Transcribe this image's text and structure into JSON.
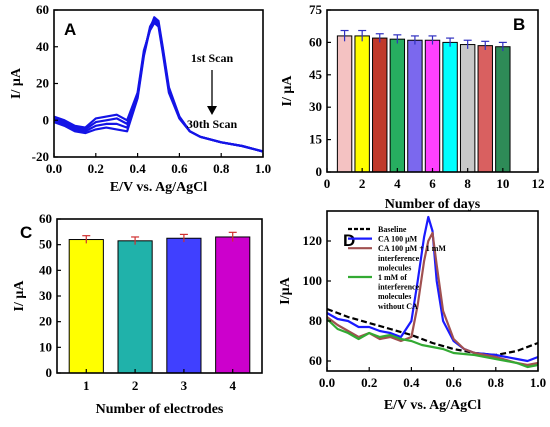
{
  "chart_data": [
    {
      "id": "A",
      "type": "line",
      "panel_label": "A",
      "xlabel": "E/V vs. Ag/AgCl",
      "ylabel": "I/ μA",
      "xlim": [
        0.0,
        1.0
      ],
      "ylim": [
        -20,
        60
      ],
      "xticks": [
        0.0,
        0.2,
        0.4,
        0.6,
        0.8,
        1.0
      ],
      "xtick_labels": [
        "0.0",
        "0.2",
        "0.4",
        "0.6",
        "0.8",
        "1.0"
      ],
      "yticks": [
        -20,
        0,
        20,
        40,
        60
      ],
      "ytick_labels": [
        "-20",
        "0",
        "20",
        "40",
        "60"
      ],
      "color": "#1414e6",
      "annotations": {
        "first_scan": "1st Scan",
        "last_scan": "30th Scan"
      },
      "series": [
        {
          "x": [
            0.0,
            0.05,
            0.1,
            0.15,
            0.2,
            0.25,
            0.3,
            0.35,
            0.4,
            0.43,
            0.46,
            0.48,
            0.5,
            0.52,
            0.55,
            0.6,
            0.65,
            0.7,
            0.8,
            0.9,
            1.0
          ],
          "y": [
            -1,
            -3,
            -6,
            -7,
            -5,
            -4,
            -5,
            -6,
            12,
            35,
            50,
            56,
            54,
            40,
            18,
            2,
            -6,
            -9,
            -12,
            -14,
            -17
          ]
        },
        {
          "x": [
            0.0,
            0.05,
            0.1,
            0.15,
            0.2,
            0.25,
            0.3,
            0.35,
            0.4,
            0.43,
            0.46,
            0.48,
            0.5,
            0.52,
            0.55,
            0.6,
            0.65,
            0.7,
            0.8,
            0.9,
            1.0
          ],
          "y": [
            0,
            -2,
            -5,
            -6,
            -3,
            -2,
            -2,
            -4,
            13,
            36,
            51,
            55,
            53,
            39,
            17,
            2,
            -6,
            -9,
            -12,
            -14,
            -17
          ]
        },
        {
          "x": [
            0.0,
            0.05,
            0.1,
            0.15,
            0.2,
            0.25,
            0.3,
            0.35,
            0.4,
            0.43,
            0.46,
            0.48,
            0.5,
            0.52,
            0.55,
            0.6,
            0.65,
            0.7,
            0.8,
            0.9,
            1.0
          ],
          "y": [
            1,
            -1,
            -4,
            -5,
            -1,
            0,
            1,
            -2,
            14,
            37,
            50,
            54,
            52,
            38,
            16,
            1,
            -6,
            -9,
            -12,
            -14,
            -17
          ]
        },
        {
          "x": [
            0.0,
            0.05,
            0.1,
            0.15,
            0.2,
            0.25,
            0.3,
            0.35,
            0.4,
            0.43,
            0.46,
            0.48,
            0.5,
            0.52,
            0.55,
            0.6,
            0.65,
            0.7,
            0.8,
            0.9,
            1.0
          ],
          "y": [
            2,
            0,
            -3,
            -4,
            1,
            2,
            3,
            0,
            15,
            38,
            49,
            53,
            51,
            37,
            15,
            1,
            -6,
            -9,
            -12,
            -14,
            -17
          ]
        }
      ]
    },
    {
      "id": "B",
      "type": "bar",
      "panel_label": "B",
      "xlabel": "Number of days",
      "ylabel": "I/ μA",
      "xlim": [
        0,
        12
      ],
      "ylim": [
        0,
        75
      ],
      "xticks": [
        0,
        2,
        4,
        6,
        8,
        10,
        12
      ],
      "xtick_labels": [
        "0",
        "2",
        "4",
        "6",
        "8",
        "10",
        "12"
      ],
      "yticks": [
        0,
        15,
        30,
        45,
        60,
        75
      ],
      "ytick_labels": [
        "0",
        "15",
        "30",
        "45",
        "60",
        "75"
      ],
      "x": [
        1,
        2,
        3,
        4,
        5,
        6,
        7,
        8,
        9,
        10
      ],
      "values": [
        63,
        63,
        62,
        61.5,
        61,
        61,
        60,
        59,
        58.5,
        58
      ],
      "errors": [
        2.5,
        2.5,
        2,
        2,
        2,
        2,
        2,
        2,
        2,
        2
      ],
      "colors": [
        "#f4c2c2",
        "#ffff00",
        "#c0392b",
        "#27ae60",
        "#7b68ee",
        "#ff40ff",
        "#00ffff",
        "#c8c8c8",
        "#d96060",
        "#2e8b57"
      ]
    },
    {
      "id": "C",
      "type": "bar",
      "panel_label": "C",
      "xlabel": "Number of electrodes",
      "ylabel": "I/ μA",
      "ylim": [
        0,
        60
      ],
      "yticks": [
        0,
        10,
        20,
        30,
        40,
        50,
        60
      ],
      "ytick_labels": [
        "0",
        "10",
        "20",
        "30",
        "40",
        "50",
        "60"
      ],
      "categories": [
        "1",
        "2",
        "3",
        "4"
      ],
      "values": [
        52,
        51.5,
        52.5,
        53
      ],
      "errors": [
        1.5,
        1.5,
        1.5,
        1.8
      ],
      "colors": [
        "#ffff00",
        "#20b2aa",
        "#4040ff",
        "#cc00cc"
      ]
    },
    {
      "id": "D",
      "type": "line",
      "panel_label": "D",
      "xlabel": "E/V vs. Ag/AgCl",
      "ylabel": "I/μA",
      "xlim": [
        0.0,
        1.0
      ],
      "ylim": [
        55,
        135
      ],
      "xticks": [
        0.0,
        0.2,
        0.4,
        0.6,
        0.8,
        1.0
      ],
      "xtick_labels": [
        "0.0",
        "0.2",
        "0.4",
        "0.6",
        "0.8",
        "1.0"
      ],
      "yticks": [
        60,
        80,
        100,
        120
      ],
      "ytick_labels": [
        "60",
        "80",
        "100",
        "120"
      ],
      "legend": [
        "Baseline",
        "CA 100 μM",
        "CA 100 μM + 1 mM",
        "interference",
        "molecules",
        "1 mM of",
        "interference",
        "molecules",
        "without CA"
      ],
      "series": [
        {
          "name": "Baseline",
          "color": "#000000",
          "dash": true,
          "x": [
            0.0,
            0.05,
            0.1,
            0.2,
            0.3,
            0.4,
            0.5,
            0.6,
            0.7,
            0.8,
            0.9,
            1.0
          ],
          "y": [
            86,
            84,
            82,
            79,
            76,
            73,
            69,
            66,
            64,
            63,
            65,
            69
          ]
        },
        {
          "name": "CA 100 μM",
          "color": "#1a1aff",
          "dash": false,
          "x": [
            0.0,
            0.05,
            0.1,
            0.15,
            0.2,
            0.25,
            0.3,
            0.35,
            0.4,
            0.43,
            0.46,
            0.48,
            0.5,
            0.52,
            0.55,
            0.6,
            0.65,
            0.7,
            0.8,
            0.9,
            0.95,
            1.0
          ],
          "y": [
            84,
            81,
            80,
            77,
            77,
            75,
            74,
            72,
            80,
            100,
            122,
            132,
            125,
            100,
            80,
            70,
            66,
            64,
            63,
            61,
            60,
            62
          ]
        },
        {
          "name": "CA 100 μM + 1 mM interference molecules",
          "color": "#a05050",
          "dash": false,
          "x": [
            0.0,
            0.05,
            0.1,
            0.15,
            0.2,
            0.25,
            0.3,
            0.35,
            0.4,
            0.43,
            0.46,
            0.48,
            0.5,
            0.52,
            0.55,
            0.6,
            0.65,
            0.7,
            0.8,
            0.9,
            0.95,
            1.0
          ],
          "y": [
            82,
            78,
            75,
            72,
            74,
            71,
            72,
            70,
            72,
            88,
            110,
            120,
            124,
            108,
            85,
            71,
            66,
            64,
            62,
            59,
            58,
            59
          ]
        },
        {
          "name": "1 mM of interference molecules without CA",
          "color": "#33aa33",
          "dash": false,
          "x": [
            0.0,
            0.05,
            0.1,
            0.15,
            0.2,
            0.25,
            0.3,
            0.35,
            0.4,
            0.45,
            0.5,
            0.55,
            0.6,
            0.7,
            0.8,
            0.9,
            0.95,
            1.0
          ],
          "y": [
            81,
            76,
            74,
            71,
            74,
            72,
            73,
            71,
            70,
            68,
            67,
            66,
            64,
            63,
            61,
            59,
            57,
            58
          ]
        }
      ]
    }
  ]
}
